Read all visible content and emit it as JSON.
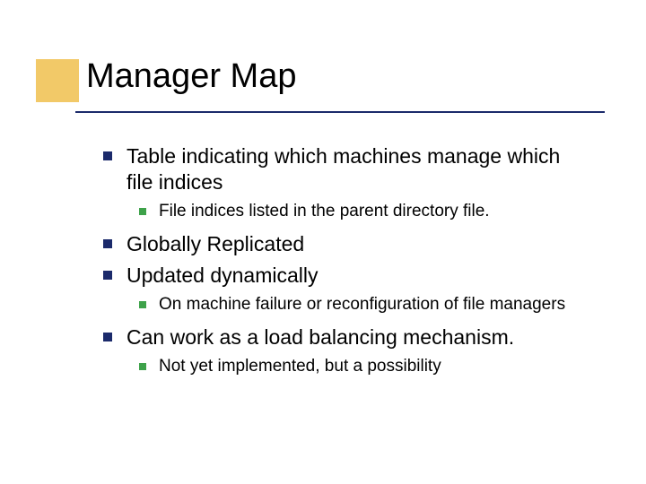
{
  "slide": {
    "title": "Manager Map",
    "colors": {
      "accent_box": "#f2c968",
      "rule": "#1b2a6b",
      "bullet_lvl1": "#1b2a6b",
      "bullet_lvl2": "#3ea24a",
      "background": "#ffffff",
      "text": "#000000"
    },
    "typography": {
      "title_fontsize": 38,
      "lvl1_fontsize": 23,
      "lvl2_fontsize": 19,
      "font_family": "Verdana"
    },
    "bullets": [
      {
        "text": "Table indicating which machines manage which file indices",
        "children": [
          {
            "text": "File indices listed in the parent directory file."
          }
        ]
      },
      {
        "text": "Globally Replicated",
        "children": []
      },
      {
        "text": "Updated dynamically",
        "children": [
          {
            "text": "On machine failure or reconfiguration of file managers"
          }
        ]
      },
      {
        "text": "Can work as a load balancing mechanism.",
        "children": [
          {
            "text": "Not yet implemented, but a possibility"
          }
        ]
      }
    ]
  }
}
